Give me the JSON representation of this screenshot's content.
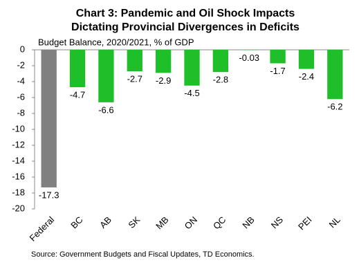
{
  "chart_data": {
    "type": "bar",
    "title": [
      "Chart 3: Pandemic and Oil Shock Impacts",
      "Dictating Provincial Divergences in Deficits"
    ],
    "subtitle": "Budget Balance, 2020/2021, % of GDP",
    "source": "Source: Government Budgets and Fiscal Updates, TD Economics.",
    "categories": [
      "Federal",
      "BC",
      "AB",
      "SK",
      "MB",
      "ON",
      "QC",
      "NB",
      "NS",
      "PEI",
      "NL"
    ],
    "values": [
      -17.3,
      -4.7,
      -6.6,
      -2.7,
      -2.9,
      -4.5,
      -2.8,
      -0.03,
      -1.7,
      -2.4,
      -6.2
    ],
    "colors": [
      "#808080",
      "#1fbf2a",
      "#1fbf2a",
      "#1fbf2a",
      "#1fbf2a",
      "#1fbf2a",
      "#1fbf2a",
      "#1fbf2a",
      "#1fbf2a",
      "#1fbf2a",
      "#1fbf2a"
    ],
    "ylim": [
      -20,
      0
    ],
    "yticks": [
      0,
      -2,
      -4,
      -6,
      -8,
      -10,
      -12,
      -14,
      -16,
      -18,
      -20
    ],
    "grid": false
  }
}
